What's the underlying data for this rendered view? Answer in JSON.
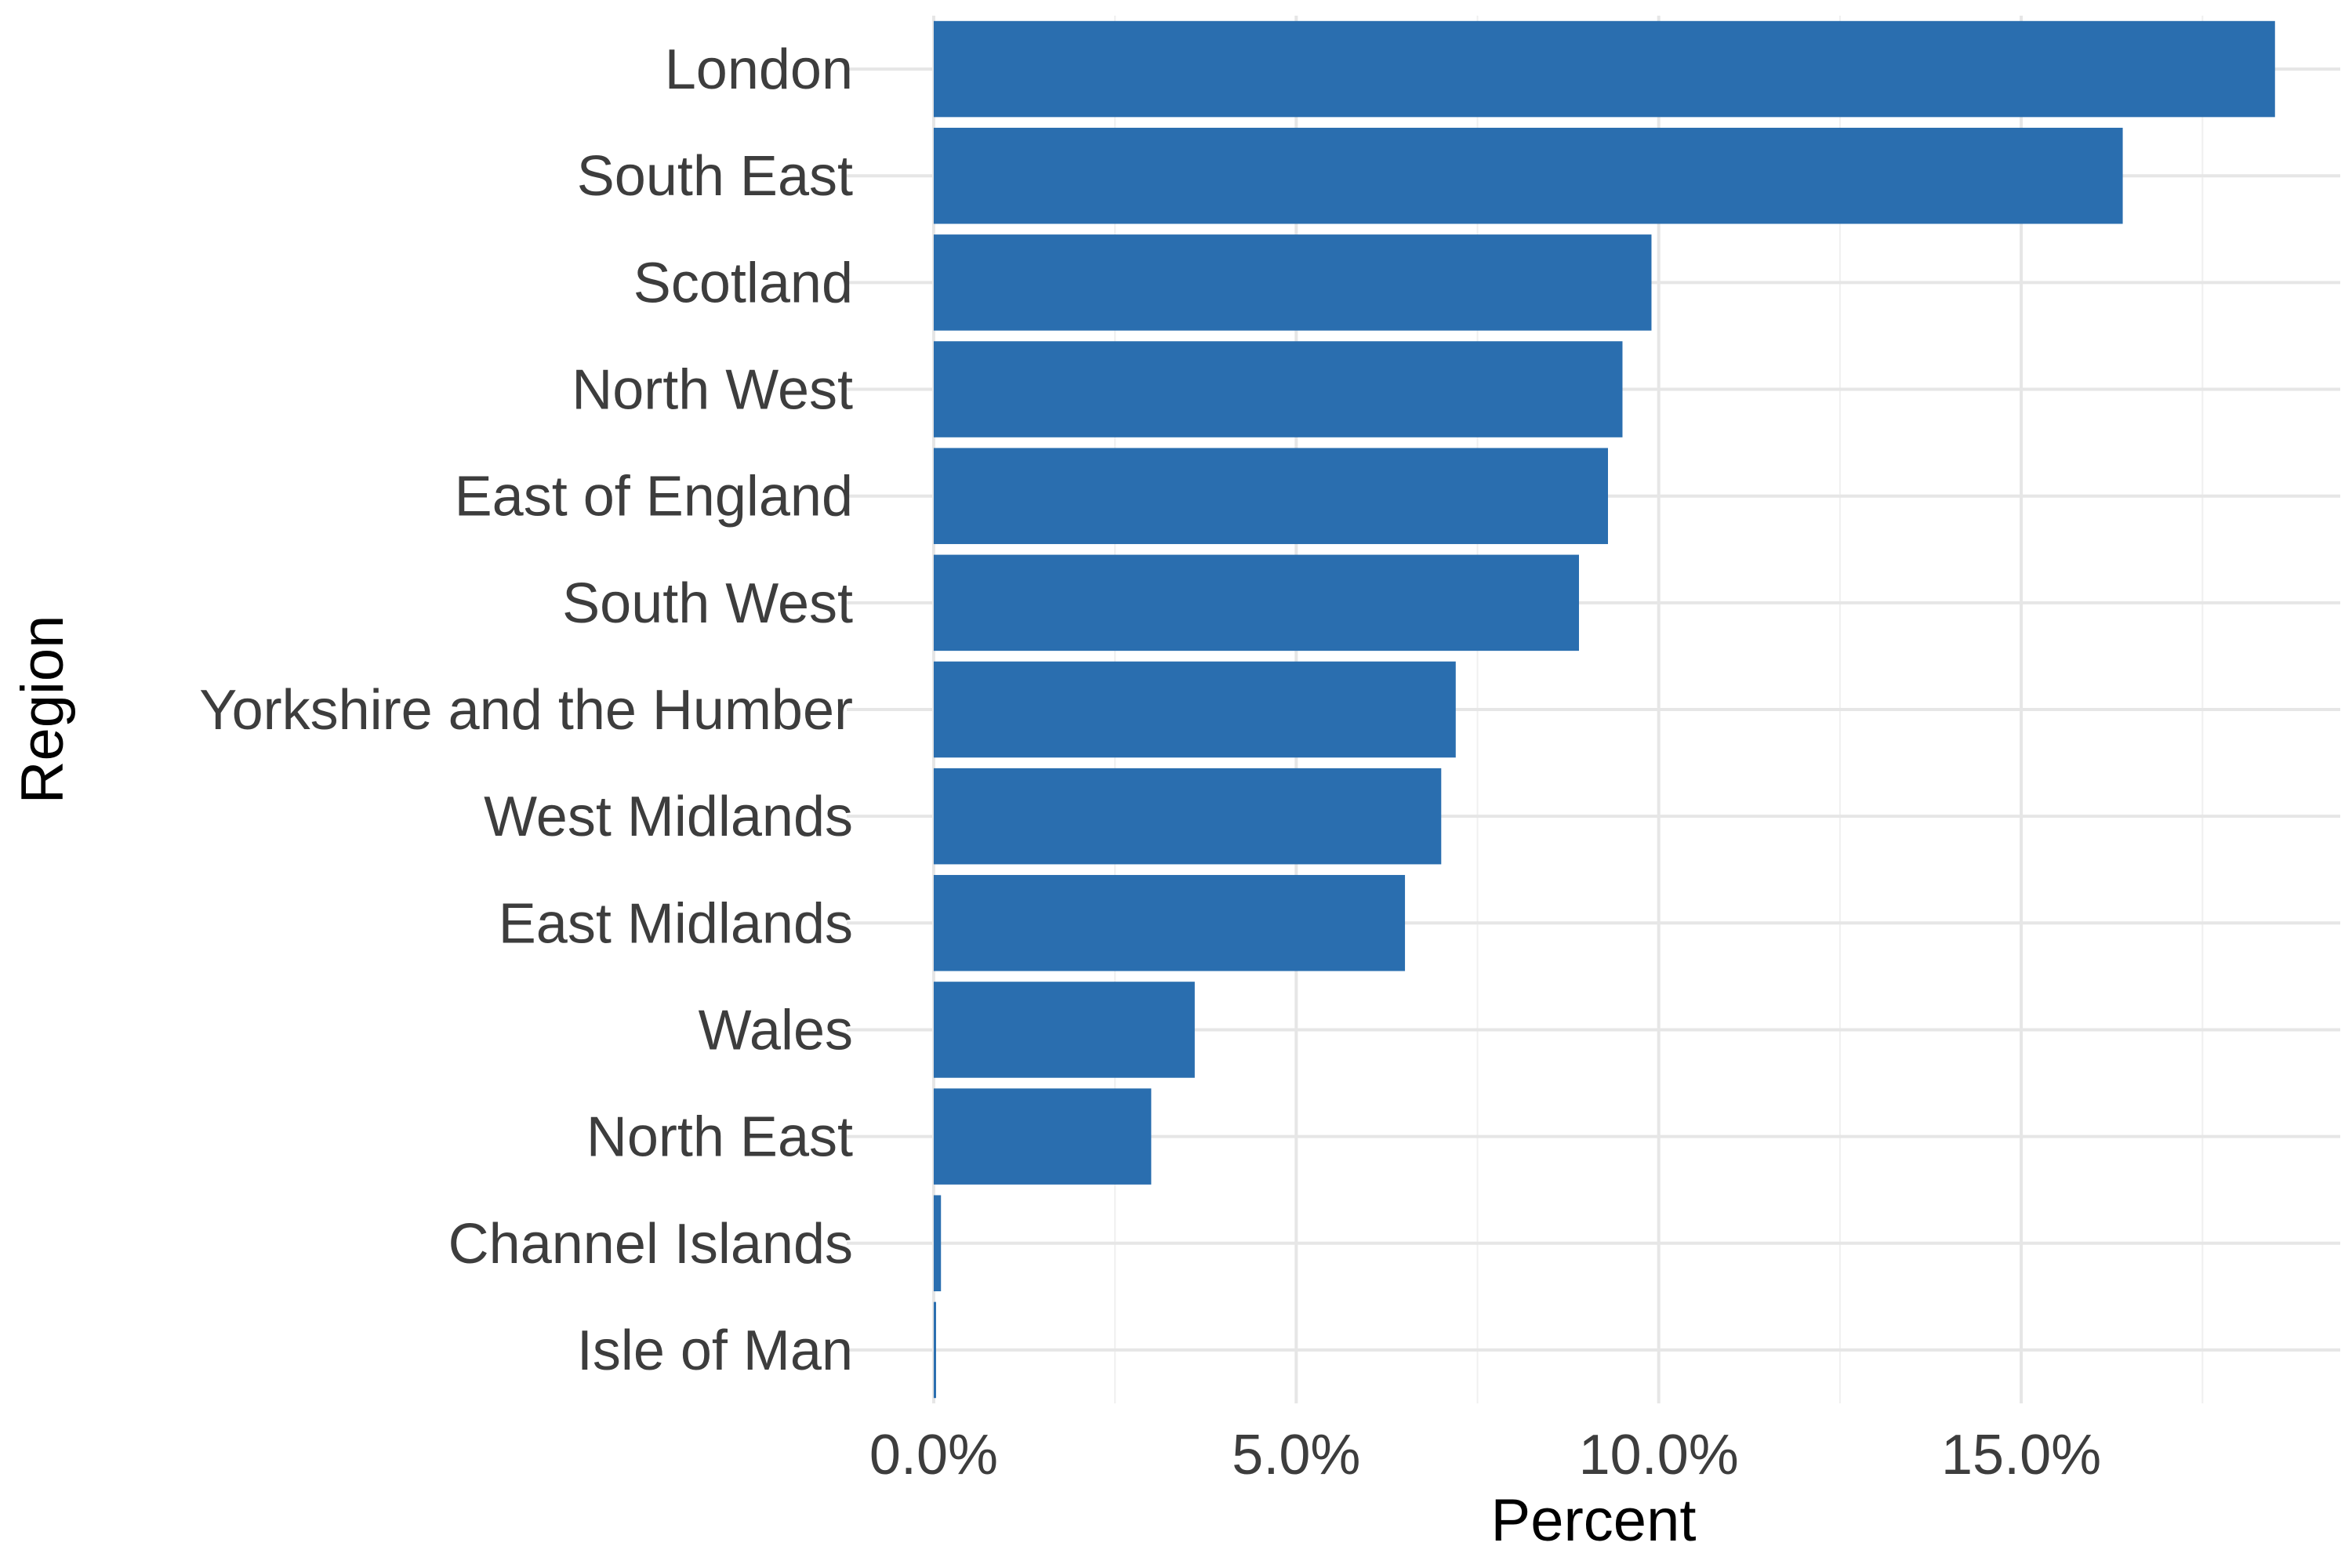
{
  "chart_data": {
    "type": "bar",
    "orientation": "horizontal",
    "xlabel": "Percent",
    "ylabel": "Region",
    "categories": [
      "London",
      "South East",
      "Scotland",
      "North West",
      "East of England",
      "South West",
      "Yorkshire and the Humber",
      "West Midlands",
      "East Midlands",
      "Wales",
      "North East",
      "Channel Islands",
      "Isle of Man"
    ],
    "values": [
      18.5,
      16.4,
      9.9,
      9.5,
      9.3,
      8.9,
      7.2,
      7.0,
      6.5,
      3.6,
      3.0,
      0.1,
      0.02
    ],
    "xlim": [
      -1.2,
      19.4
    ],
    "x_ticks": [
      0,
      5,
      10,
      15
    ],
    "x_tick_labels": [
      "0.0%",
      "5.0%",
      "10.0%",
      "15.0%"
    ],
    "x_minor_ticks": [
      2.5,
      7.5,
      12.5,
      17.5
    ],
    "grid": true,
    "bar_color": "#2a6eaf",
    "grid_color": "#e6e6e6",
    "text_color": "#3d3d3d"
  }
}
